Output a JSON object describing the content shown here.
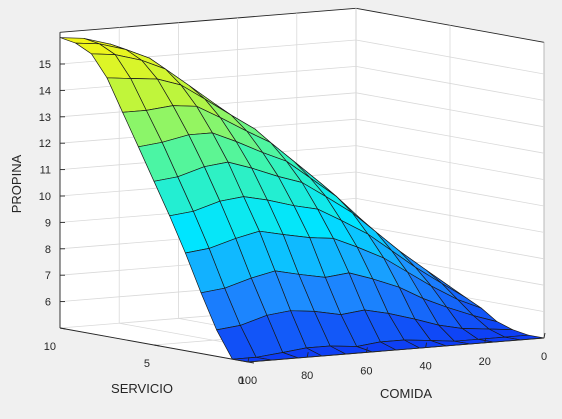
{
  "chart_data": {
    "type": "surface",
    "title": "",
    "xlabel": "COMIDA",
    "ylabel": "SERVICIO",
    "zlabel": "PROPINA",
    "x_ticks": [
      "100",
      "80",
      "60",
      "40",
      "20",
      "0"
    ],
    "y_ticks": [
      "10",
      "5",
      "0"
    ],
    "z_ticks": [
      "6",
      "7",
      "8",
      "9",
      "10",
      "11",
      "12",
      "13",
      "14",
      "15"
    ],
    "xlim": [
      0,
      100
    ],
    "ylim": [
      0,
      10
    ],
    "zlim": [
      5,
      16
    ],
    "grid": true,
    "colormap": [
      "#0d3cf5",
      "#1e90ff",
      "#00e5ff",
      "#3df5b0",
      "#b6f542",
      "#f5f516"
    ],
    "grid_x": [
      0,
      8,
      17,
      25,
      33,
      42,
      50,
      58,
      67,
      75,
      83,
      92,
      100
    ],
    "grid_y": [
      0,
      0.83,
      1.67,
      2.5,
      3.33,
      4.17,
      5,
      5.83,
      6.67,
      7.5,
      8.33,
      9.17,
      10
    ],
    "z": [
      [
        5.0,
        5.0,
        5.0,
        5.0,
        5.0,
        5.0,
        5.0,
        5.0,
        5.0,
        5.0,
        5.0,
        5.0,
        5.0
      ],
      [
        5.0,
        5.0,
        5.0,
        5.0,
        5.1,
        5.2,
        5.2,
        5.1,
        5.2,
        5.2,
        5.1,
        5.0,
        5.0
      ],
      [
        5.1,
        5.2,
        5.3,
        5.5,
        5.8,
        6.1,
        6.3,
        6.2,
        6.4,
        6.5,
        6.4,
        6.1,
        6.0
      ],
      [
        5.3,
        5.6,
        6.0,
        6.4,
        6.9,
        7.3,
        7.6,
        7.5,
        7.7,
        7.9,
        7.7,
        7.4,
        7.3
      ],
      [
        5.7,
        6.1,
        6.7,
        7.3,
        7.9,
        8.4,
        8.8,
        8.9,
        9.1,
        9.3,
        9.1,
        8.8,
        8.7
      ],
      [
        6.0,
        6.6,
        7.3,
        8.0,
        8.7,
        9.3,
        9.8,
        10.0,
        10.3,
        10.5,
        10.4,
        10.1,
        10.0
      ],
      [
        6.3,
        7.0,
        7.8,
        8.6,
        9.4,
        10.1,
        10.7,
        11.0,
        11.4,
        11.7,
        11.6,
        11.3,
        11.2
      ],
      [
        6.4,
        7.2,
        8.1,
        9.0,
        9.9,
        10.7,
        11.4,
        11.8,
        12.3,
        12.7,
        12.7,
        12.5,
        12.4
      ],
      [
        6.5,
        7.3,
        8.3,
        9.3,
        10.3,
        11.2,
        12.0,
        12.5,
        13.1,
        13.6,
        13.7,
        13.6,
        13.6
      ],
      [
        6.5,
        7.4,
        8.4,
        9.4,
        10.5,
        11.5,
        12.4,
        13.0,
        13.7,
        14.3,
        14.6,
        14.7,
        14.8
      ],
      [
        6.5,
        7.4,
        8.4,
        9.5,
        10.6,
        11.7,
        12.6,
        13.3,
        14.1,
        14.8,
        15.2,
        15.5,
        15.6
      ],
      [
        6.5,
        7.4,
        8.4,
        9.5,
        10.6,
        11.7,
        12.7,
        13.4,
        14.3,
        15.1,
        15.5,
        15.8,
        15.9
      ],
      [
        6.5,
        7.4,
        8.4,
        9.5,
        10.6,
        11.7,
        12.7,
        13.5,
        14.4,
        15.2,
        15.6,
        15.9,
        16.0
      ]
    ]
  }
}
